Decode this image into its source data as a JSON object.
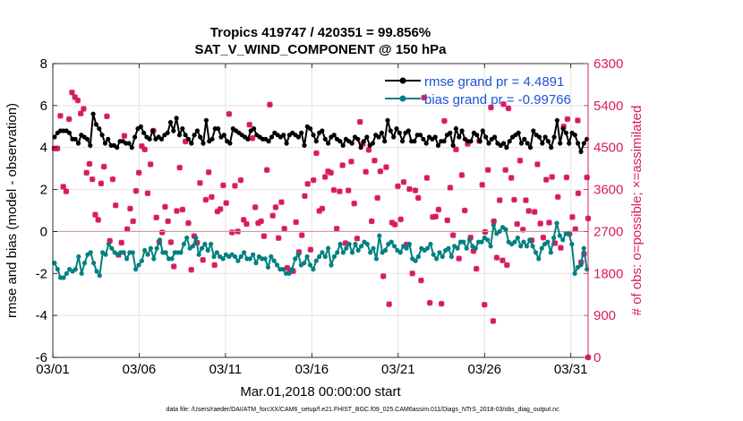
{
  "chart_data": {
    "type": "line",
    "title_line1": "Tropics 419747 / 420351 = 99.856%",
    "title_line2": "SAT_V_WIND_COMPONENT @ 150 hPa",
    "xlabel": "Mar.01,2018 00:00:00 start",
    "ylabel_left": "rmse and bias (model - observation)",
    "ylabel_right": "# of obs: o=possible; ×=assimilated",
    "footer": "data file: /Users/raeder/DAI/ATM_forcXX/CAM6_setup/f.e21.FHIST_BGC.f09_025.CAM6assim.011/Diags_NTrS_2018-03/obs_diag_output.nc",
    "x_ticks": [
      "03/01",
      "03/06",
      "03/11",
      "03/16",
      "03/21",
      "03/26",
      "03/31"
    ],
    "x_range_days": [
      0,
      31
    ],
    "y_left_range": [
      -6,
      8
    ],
    "y_left_ticks": [
      "-6",
      "-4",
      "-2",
      "0",
      "2",
      "4",
      "6",
      "8"
    ],
    "y_right_range": [
      0,
      6300
    ],
    "y_right_ticks": [
      "0",
      "900",
      "1800",
      "2700",
      "3600",
      "4500",
      "5400",
      "6300"
    ],
    "legend": {
      "rmse_label": "rmse grand pr = 4.4891",
      "bias_label": "bias grand pr = -0.99766"
    },
    "colors": {
      "rmse": "#000000",
      "bias": "#008080",
      "obs": "#d81b60",
      "zero_line": "#c8a0a0",
      "grid": "#e3e3e3"
    },
    "rmse_series": [
      4.5,
      4.7,
      4.8,
      4.8,
      4.8,
      4.7,
      4.4,
      4.4,
      4.2,
      4.6,
      4.5,
      4.4,
      4.1,
      5.6,
      5.1,
      4.9,
      4.6,
      4.2,
      4.4,
      4.1,
      4.1,
      4.0,
      4.3,
      4.3,
      4.2,
      4.2,
      4.0,
      4.5,
      4.9,
      5.0,
      4.7,
      4.5,
      4.4,
      4.8,
      4.4,
      4.5,
      4.4,
      4.6,
      4.7,
      5.2,
      4.8,
      5.4,
      4.6,
      4.9,
      4.6,
      4.4,
      4.2,
      4.6,
      4.8,
      4.5,
      4.2,
      5.3,
      4.3,
      4.4,
      4.9,
      4.9,
      4.5,
      4.6,
      4.3,
      4.2,
      4.9,
      4.8,
      4.7,
      4.6,
      4.5,
      4.4,
      4.8,
      4.9,
      4.6,
      4.5,
      4.4,
      4.4,
      4.3,
      4.5,
      4.7,
      4.6,
      4.5,
      4.6,
      4.2,
      4.6,
      4.7,
      4.6,
      4.5,
      4.7,
      4.1,
      5.0,
      4.9,
      4.6,
      4.3,
      4.7,
      4.8,
      4.4,
      4.2,
      4.5,
      4.6,
      4.4,
      4.3,
      4.1,
      4.4,
      4.3,
      4.2,
      4.5,
      4.4,
      4.0,
      4.3,
      4.5,
      4.1,
      4.2,
      4.6,
      4.5,
      4.7,
      4.3,
      5.3,
      4.8,
      4.5,
      4.9,
      4.7,
      4.3,
      4.7,
      4.8,
      4.3,
      4.3,
      4.6,
      4.6,
      4.4,
      4.2,
      4.5,
      4.4,
      4.5,
      4.1,
      4.3,
      4.3,
      4.6,
      4.7,
      4.1,
      4.9,
      4.5,
      4.8,
      4.4,
      4.3,
      4.3,
      4.7,
      4.6,
      4.3,
      4.8,
      4.5,
      4.2,
      4.4,
      4.5,
      4.2,
      4.1,
      4.2,
      4.0,
      4.3,
      4.5,
      4.6,
      4.7,
      4.2,
      4.4,
      4.2,
      4.0,
      4.8,
      4.6,
      4.5,
      4.2,
      4.5,
      4.3,
      4.0,
      4.5,
      5.3,
      4.2,
      4.9,
      4.7,
      4.2,
      4.7,
      4.6,
      4.2,
      3.8,
      4.2,
      4.4
    ],
    "bias_series": [
      -1.5,
      -1.8,
      -2.2,
      -2.2,
      -2.0,
      -1.8,
      -1.9,
      -1.8,
      -1.2,
      -2.0,
      -1.5,
      -1.1,
      -1.0,
      -1.5,
      -1.9,
      -2.1,
      -1.0,
      -1.1,
      -0.6,
      -0.8,
      -1.0,
      -1.1,
      -1.0,
      -1.0,
      -1.3,
      -1.0,
      -1.0,
      -1.8,
      -1.6,
      -1.4,
      -0.9,
      -1.1,
      -0.8,
      -1.3,
      -0.8,
      -0.4,
      -1.0,
      -1.0,
      -1.3,
      -1.3,
      -1.0,
      -1.0,
      -1.0,
      -0.6,
      -0.3,
      -0.8,
      -0.7,
      -0.3,
      -1.1,
      -0.8,
      -0.6,
      -0.9,
      -0.6,
      -1.2,
      -1.0,
      -1.2,
      -1.3,
      -1.1,
      -1.2,
      -1.1,
      -1.2,
      -1.4,
      -1.2,
      -1.0,
      -1.3,
      -1.3,
      -1.1,
      -1.5,
      -1.2,
      -1.3,
      -1.3,
      -1.7,
      -1.2,
      -1.4,
      -1.6,
      -1.8,
      -1.8,
      -2.0,
      -2.0,
      -1.8,
      -1.3,
      -1.1,
      -1.6,
      -1.5,
      -1.2,
      -1.6,
      -1.8,
      -1.4,
      -1.2,
      -1.0,
      -1.2,
      -0.8,
      -1.6,
      -1.2,
      -1.0,
      -0.6,
      -1.0,
      -0.8,
      -0.6,
      -1.0,
      -0.6,
      -0.9,
      -0.7,
      -0.5,
      -0.6,
      -1.0,
      -0.8,
      -1.3,
      -0.2,
      -1.0,
      -0.9,
      -0.6,
      -0.5,
      -0.7,
      -0.9,
      -1.0,
      -0.7,
      -0.8,
      -0.6,
      -1.3,
      -1.4,
      -1.2,
      -0.8,
      -0.9,
      -0.8,
      -0.6,
      -1.1,
      -1.3,
      -1.0,
      -1.2,
      -0.9,
      -0.8,
      -1.2,
      -0.7,
      -0.8,
      -0.5,
      -0.5,
      -0.8,
      -0.4,
      -0.7,
      -0.8,
      -0.5,
      -0.5,
      -0.3,
      -0.4,
      -0.7,
      0.3,
      -0.1,
      0.0,
      0.2,
      0.1,
      -0.5,
      -0.6,
      -0.5,
      -0.3,
      -0.7,
      -0.5,
      -0.7,
      -0.4,
      -0.7,
      -1.0,
      -1.3,
      -0.8,
      -0.6,
      -0.5,
      -1.0,
      -0.3,
      0.4,
      -0.2,
      -0.4,
      -0.1,
      -0.1,
      -0.6,
      -2.0,
      -1.7,
      -1.6,
      -0.8,
      -1.8
    ],
    "obs_counts": [
      4480,
      4480,
      5180,
      3660,
      3560,
      5110,
      5680,
      5580,
      5510,
      5230,
      5330,
      3960,
      4150,
      3820,
      3060,
      2950,
      3730,
      4090,
      5170,
      2500,
      3820,
      3260,
      2200,
      2460,
      4750,
      2750,
      3190,
      2920,
      3570,
      3960,
      4530,
      4460,
      3520,
      4140,
      4860,
      3000,
      2470,
      2680,
      3230,
      2920,
      2470,
      1950,
      3140,
      4070,
      3170,
      4630,
      2880,
      1880,
      2600,
      2460,
      3740,
      2090,
      3380,
      3970,
      3440,
      1980,
      3130,
      3180,
      3690,
      3310,
      5220,
      2680,
      3680,
      2700,
      3800,
      2950,
      2860,
      4990,
      4700,
      3220,
      2880,
      2920,
      2600,
      4020,
      5420,
      3040,
      3220,
      2560,
      3330,
      2760,
      1920,
      1850,
      1850,
      2900,
      2260,
      2620,
      3460,
      3720,
      2310,
      3800,
      4380,
      3140,
      3190,
      3870,
      3990,
      3960,
      3590,
      2760,
      3560,
      4120,
      2450,
      3580,
      4200,
      3300,
      2550,
      5050,
      4580,
      3980,
      4450,
      2920,
      4220,
      3420,
      3990,
      1740,
      4080,
      1140,
      2890,
      2850,
      3670,
      2960,
      3760,
      2420,
      3610,
      1800,
      3580,
      3420,
      1650,
      5570,
      3850,
      1170,
      3010,
      3020,
      3170,
      1150,
      5070,
      2940,
      3640,
      2620,
      4460,
      2120,
      3910,
      3150,
      4580,
      2570,
      2280,
      1900,
      4640,
      3700,
      2690,
      4020,
      5360,
      2920,
      2140,
      3370,
      2080,
      4020,
      5340,
      3850,
      3380,
      2860,
      4220,
      2740,
      3370,
      3140,
      2510,
      3120,
      4140,
      2870,
      2570,
      3810,
      2890,
      3870,
      2450,
      3440,
      2350,
      4950,
      3860,
      2650,
      3010,
      2750,
      3520,
      2040,
      2220,
      3860
    ],
    "obs_outliers": [
      {
        "day": 25.0,
        "count": 1130
      },
      {
        "day": 25.5,
        "count": 780
      },
      {
        "day": 26.3,
        "count": 1980
      },
      {
        "day": 26.1,
        "count": 5430
      },
      {
        "day": 29.8,
        "count": 5110
      },
      {
        "day": 30.4,
        "count": 5080
      },
      {
        "day": 31.0,
        "count": 2980
      },
      {
        "day": 31.5,
        "count": 0
      }
    ]
  }
}
